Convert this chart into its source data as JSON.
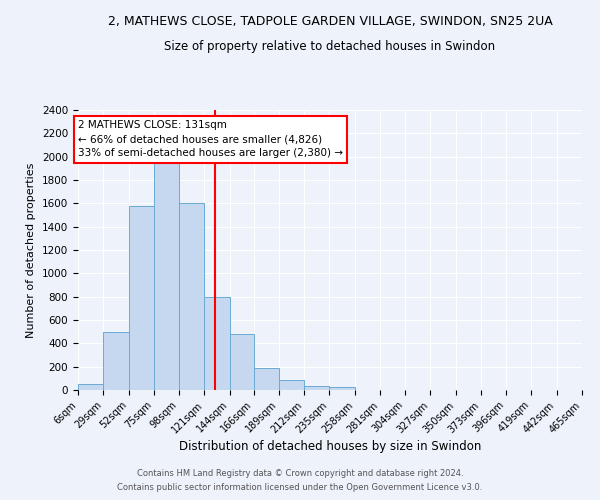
{
  "title": "2, MATHEWS CLOSE, TADPOLE GARDEN VILLAGE, SWINDON, SN25 2UA",
  "subtitle": "Size of property relative to detached houses in Swindon",
  "xlabel": "Distribution of detached houses by size in Swindon",
  "ylabel": "Number of detached properties",
  "bin_edges": [
    6,
    29,
    52,
    75,
    98,
    121,
    144,
    166,
    189,
    212,
    235,
    258,
    281,
    304,
    327,
    350,
    373,
    396,
    419,
    442,
    465
  ],
  "bar_heights": [
    50,
    500,
    1580,
    1950,
    1600,
    800,
    480,
    190,
    90,
    35,
    25,
    0,
    0,
    0,
    0,
    0,
    0,
    0,
    0,
    0
  ],
  "bar_color": "#c5d8f0",
  "bar_edgecolor": "#6aaad4",
  "vline_x": 131,
  "vline_color": "red",
  "ylim": [
    0,
    2400
  ],
  "yticks": [
    0,
    200,
    400,
    600,
    800,
    1000,
    1200,
    1400,
    1600,
    1800,
    2000,
    2200,
    2400
  ],
  "annotation_title": "2 MATHEWS CLOSE: 131sqm",
  "annotation_line1": "← 66% of detached houses are smaller (4,826)",
  "annotation_line2": "33% of semi-detached houses are larger (2,380) →",
  "annotation_box_color": "white",
  "annotation_box_edgecolor": "red",
  "footer_line1": "Contains HM Land Registry data © Crown copyright and database right 2024.",
  "footer_line2": "Contains public sector information licensed under the Open Government Licence v3.0.",
  "background_color": "#eef2fb",
  "grid_color": "#ffffff",
  "title_fontsize": 9,
  "subtitle_fontsize": 8.5,
  "tick_label_fontsize": 7,
  "axis_label_fontsize": 8.5,
  "ylabel_fontsize": 8
}
